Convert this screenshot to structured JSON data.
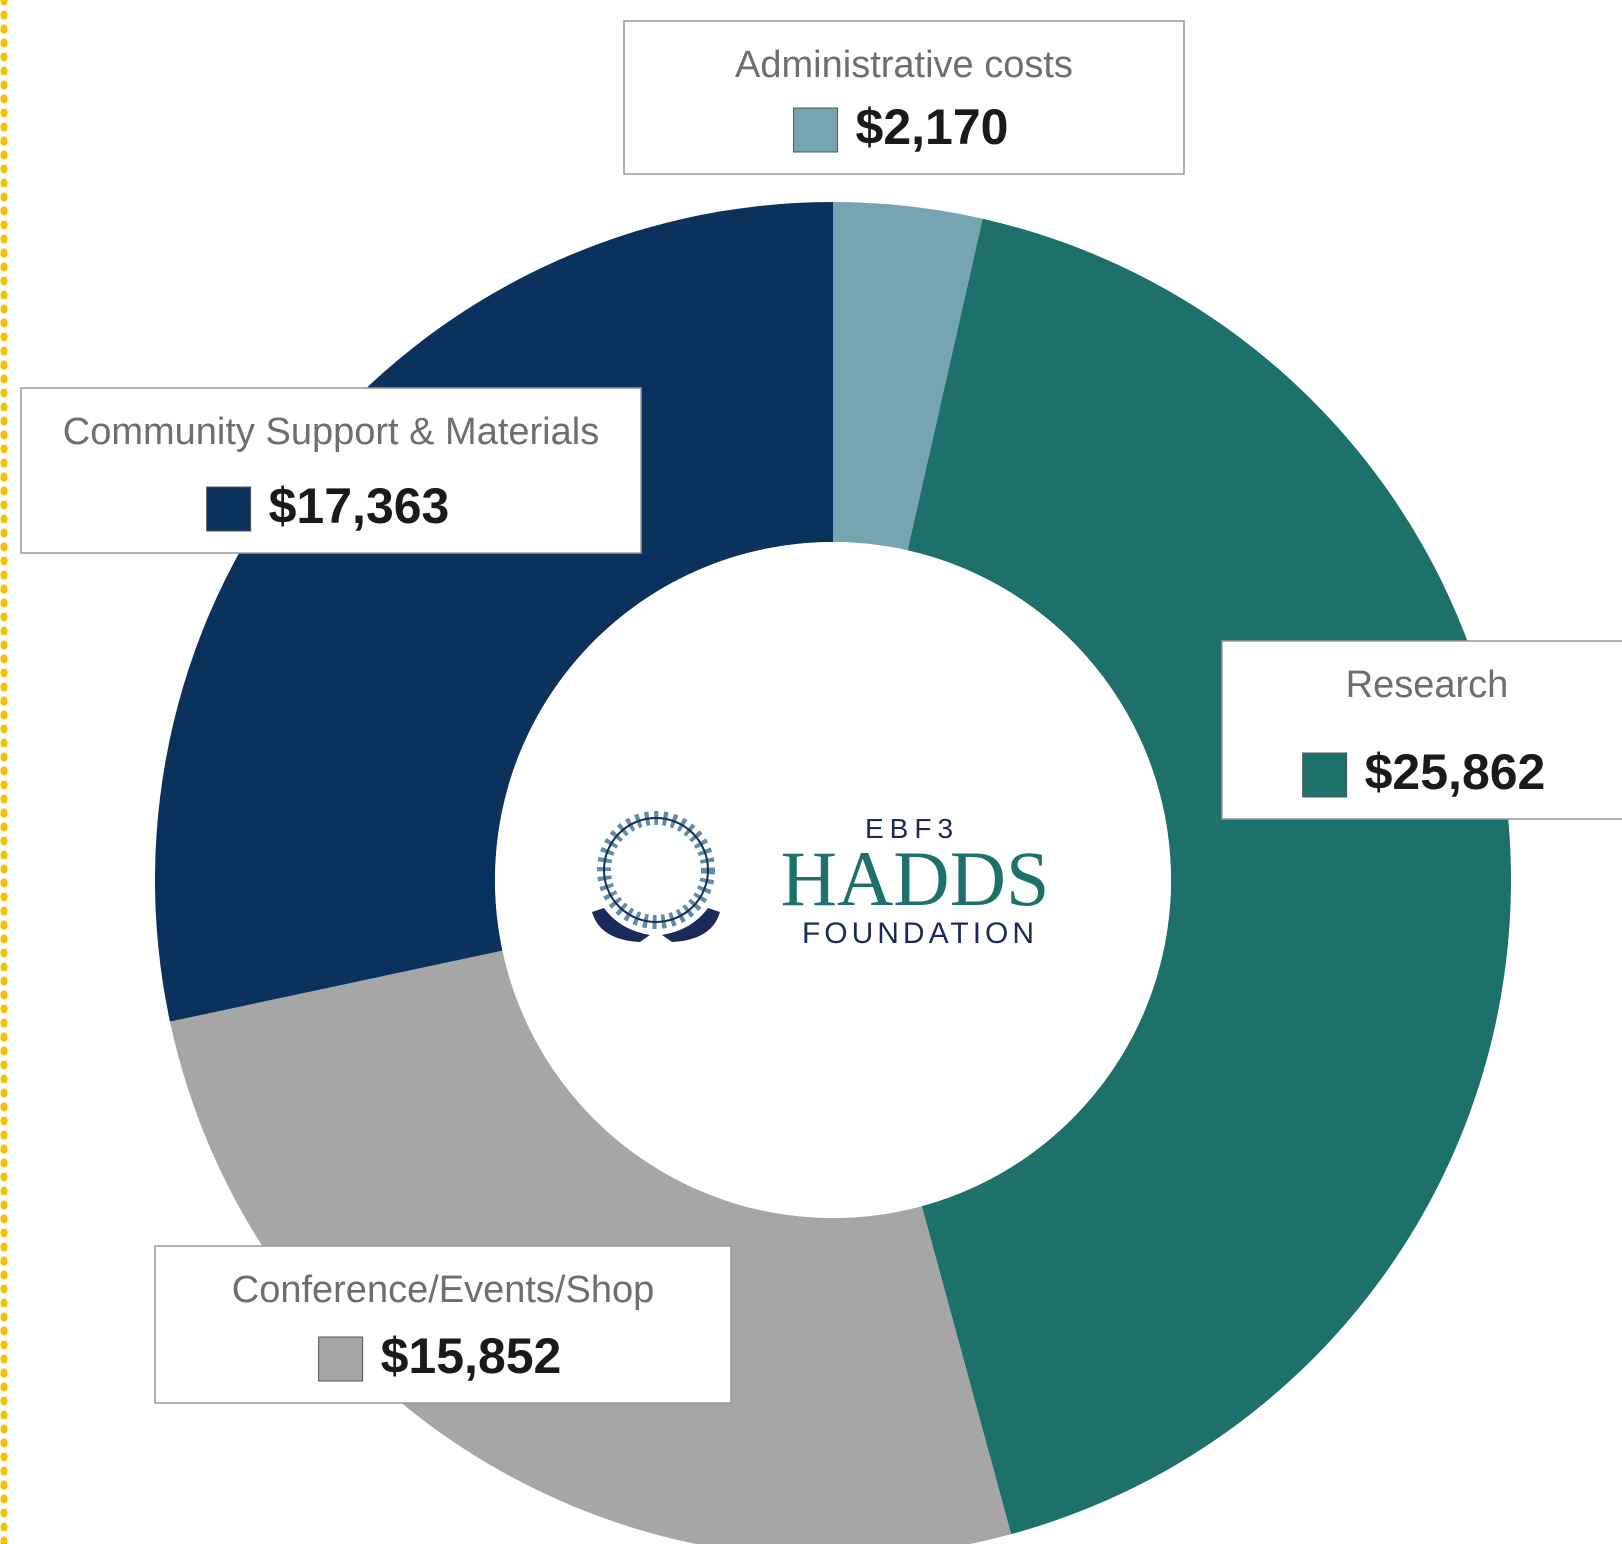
{
  "chart_data": {
    "type": "donut",
    "categories": [
      "Administrative costs",
      "Research",
      "Conference/Events/Shop",
      "Community Support & Materials"
    ],
    "values": [
      2170,
      25862,
      15852,
      17363
    ],
    "value_labels": [
      "$2,170",
      "$25,862",
      "$15,852",
      "$17,363"
    ],
    "colors": [
      "#76a5b1",
      "#1e716b",
      "#a6a6a6",
      "#0b325c"
    ],
    "logo": [
      "EBF3",
      "HADDS",
      "FOUNDATION"
    ]
  }
}
